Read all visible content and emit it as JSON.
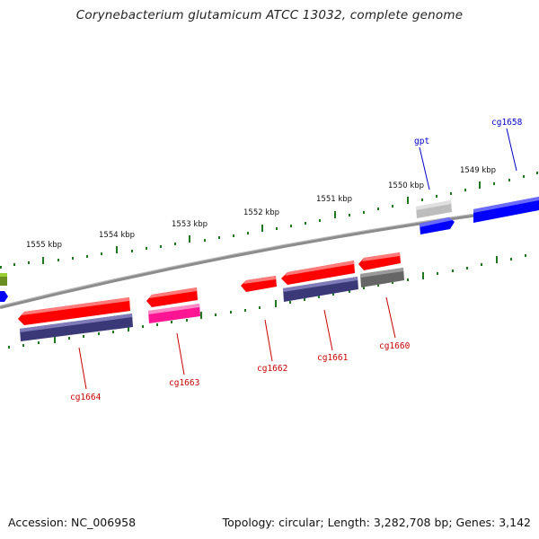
{
  "title": "Corynebacterium glutamicum ATCC 13032, complete genome",
  "footer": {
    "accession": "Accession: NC_006958",
    "summary": "Topology: circular; Length: 3,282,708 bp; Genes: 3,142"
  },
  "colors": {
    "backbone": "#808080",
    "ticks": "#1f7a1f",
    "label_forward": "#0000cc",
    "label_reverse": "#cc0000",
    "feature_red": "#ff0000",
    "feature_blue": "#0000ff",
    "feature_navy": "#3b3878",
    "feature_pink": "#ff1493",
    "feature_gray": "#bdbdbd",
    "feature_darkgray": "#666666",
    "feature_olive": "#6b8e23"
  },
  "scale_labels": [
    "1549 kbp",
    "1550 kbp",
    "1551 kbp",
    "1552 kbp",
    "1553 kbp",
    "1554 kbp",
    "1555 kbp"
  ],
  "gene_labels": {
    "forward": [
      "cg1658",
      "gpt"
    ],
    "reverse": [
      "cg1660",
      "cg1661",
      "cg1662",
      "cg1663",
      "cg1664"
    ]
  }
}
